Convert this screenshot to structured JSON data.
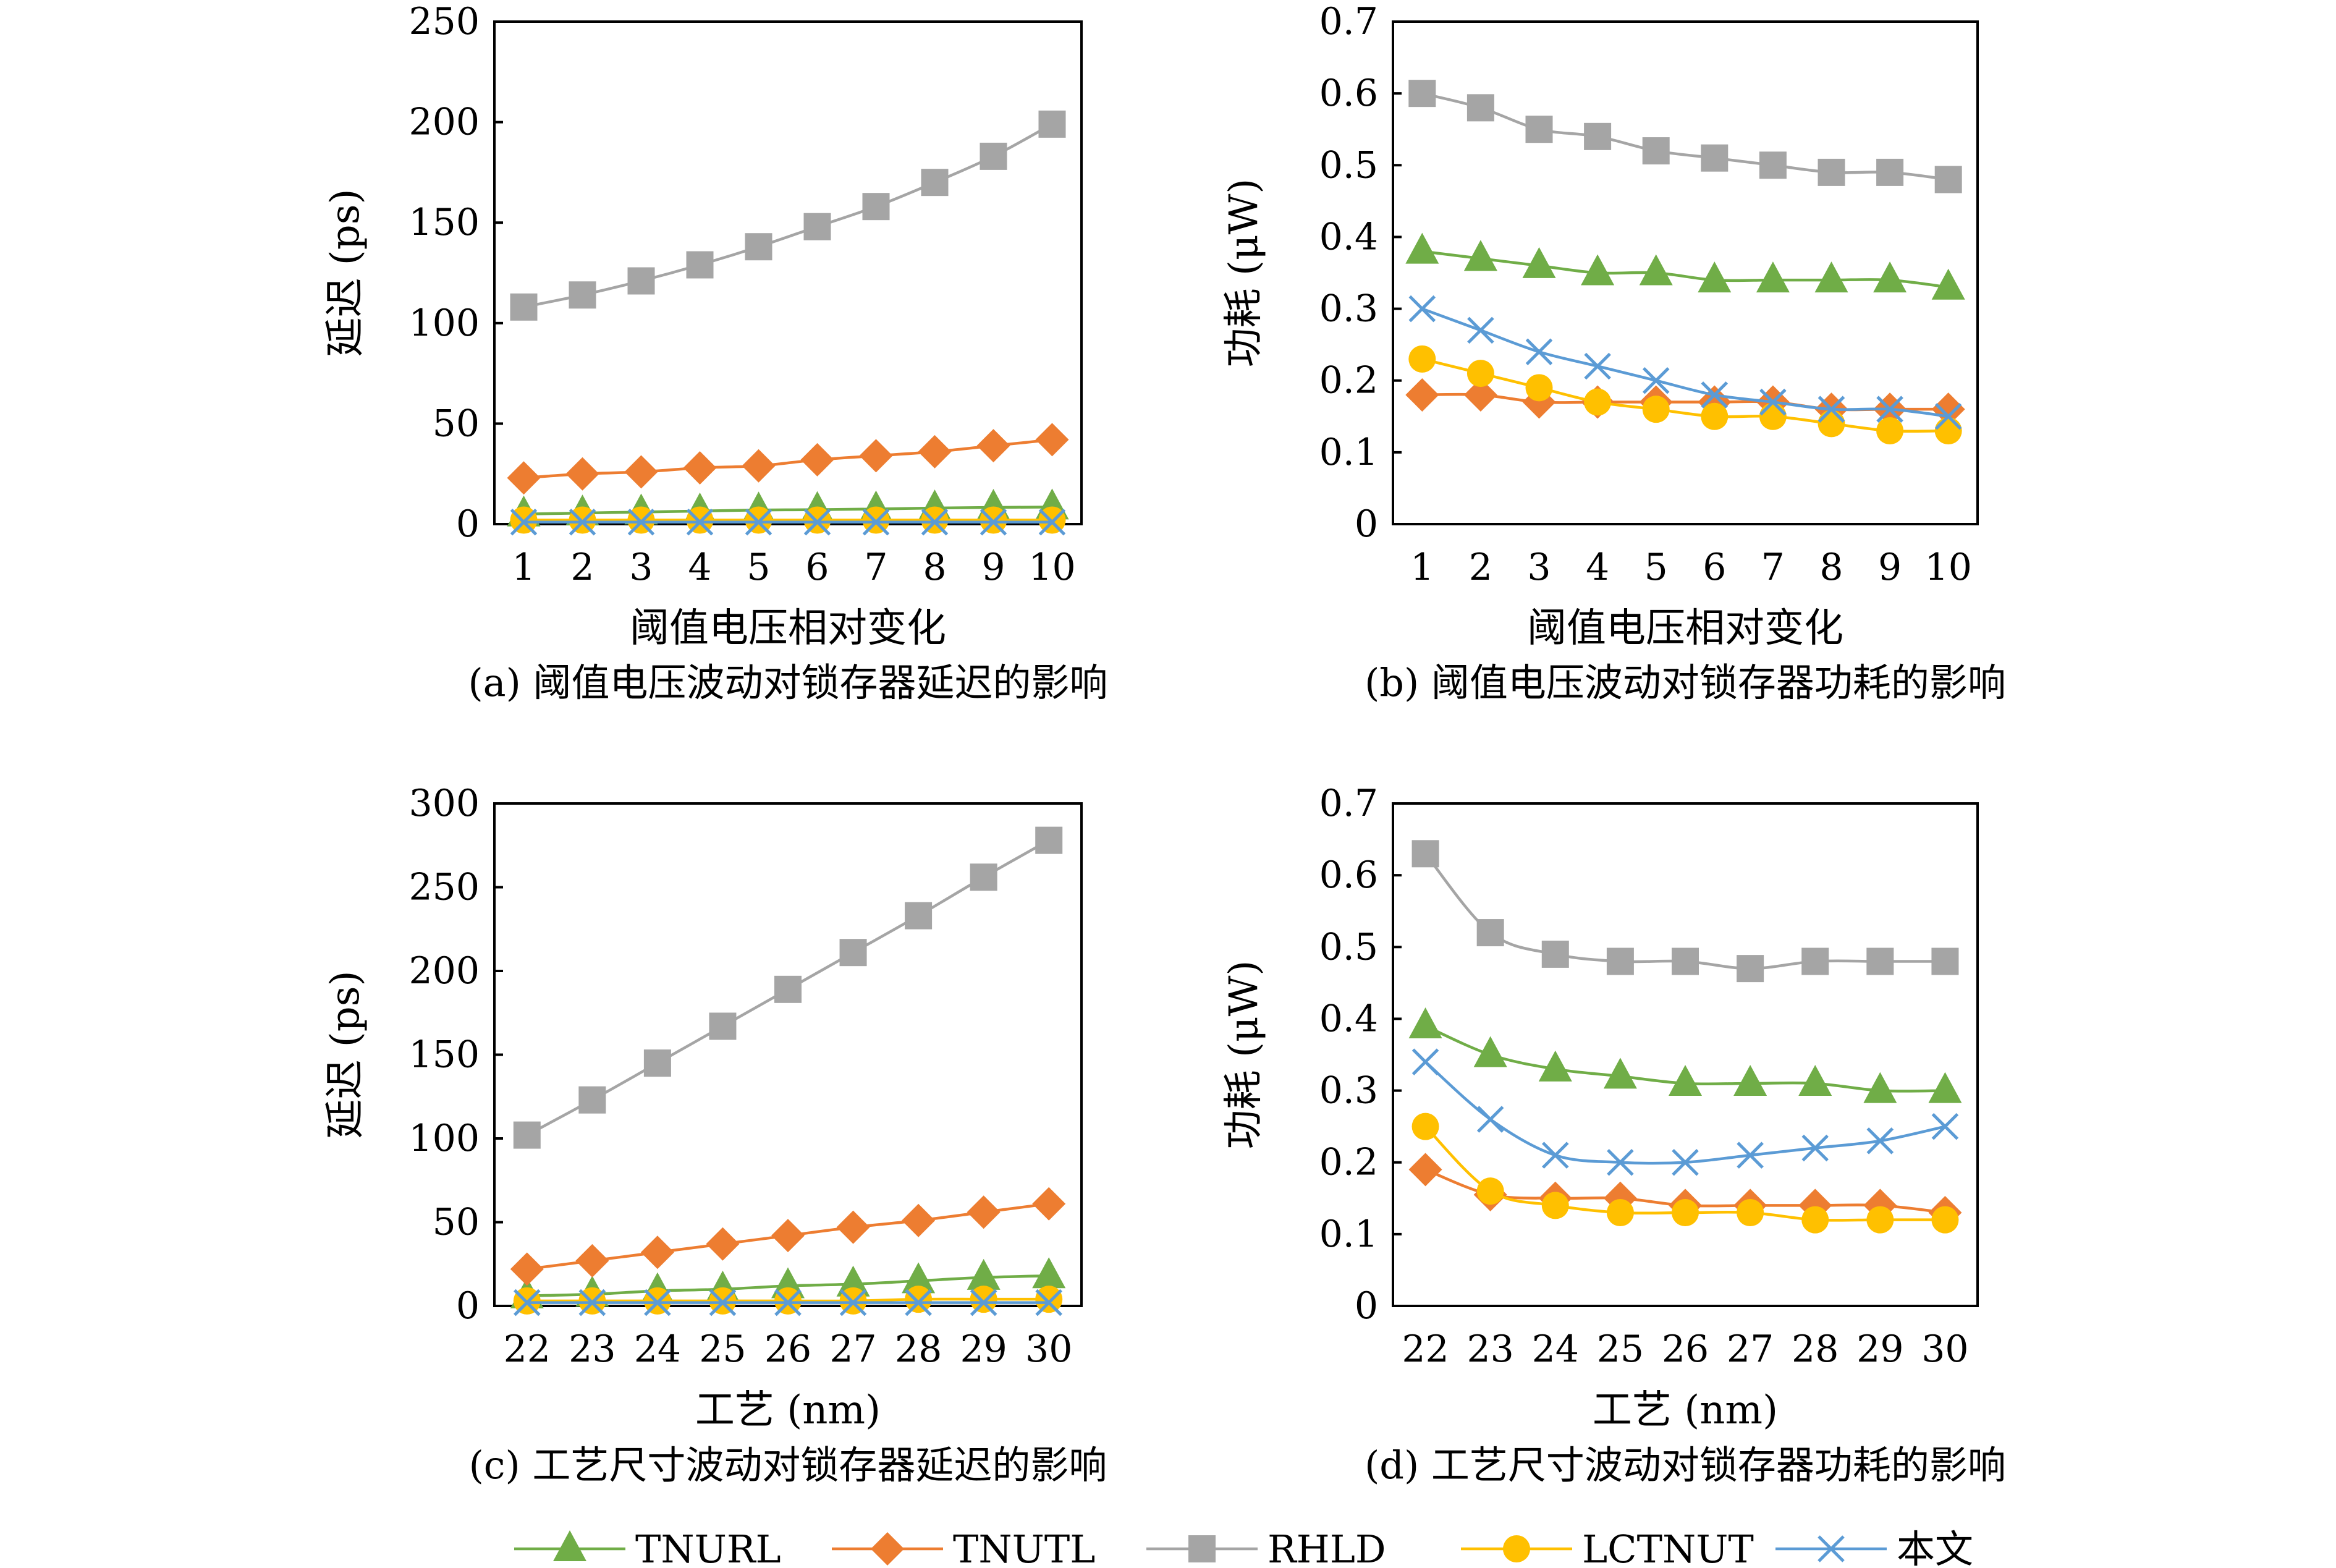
{
  "palette": {
    "TNURL": "#70AD47",
    "TNUTL": "#ED7D31",
    "RHLD": "#A5A5A5",
    "LCTNUT": "#FFC000",
    "BENWEN": "#5B9BD5"
  },
  "legend": {
    "items": [
      {
        "name": "TNURL",
        "marker": "triangle"
      },
      {
        "name": "TNUTL",
        "marker": "diamond"
      },
      {
        "name": "RHLD",
        "marker": "square"
      },
      {
        "name": "LCTNUT",
        "marker": "circle"
      },
      {
        "name": "本文",
        "marker": "x"
      }
    ]
  },
  "chart_data": [
    {
      "type": "line",
      "caption": "(a) 阈值电压波动对锁存器延迟的影响",
      "xlabel": "阈值电压相对变化",
      "ylabel": "延迟 (ps)",
      "categories": [
        "1",
        "2",
        "3",
        "4",
        "5",
        "6",
        "7",
        "8",
        "9",
        "10"
      ],
      "ylim": [
        0,
        250
      ],
      "yticks": [
        0,
        50,
        100,
        150,
        200,
        250
      ],
      "series": [
        {
          "name": "TNURL",
          "values": [
            5,
            5.5,
            6,
            6.5,
            7,
            7.2,
            7.5,
            8,
            8.3,
            8.5
          ]
        },
        {
          "name": "TNUTL",
          "values": [
            23,
            25,
            26,
            28,
            29,
            32,
            34,
            36,
            39,
            42
          ]
        },
        {
          "name": "RHLD",
          "values": [
            108,
            114,
            121,
            129,
            138,
            148,
            158,
            170,
            183,
            199
          ]
        },
        {
          "name": "LCTNUT",
          "values": [
            2,
            2,
            2,
            2,
            2,
            2,
            2,
            2,
            2,
            2
          ]
        },
        {
          "name": "本文",
          "values": [
            1,
            1,
            1,
            1,
            1,
            1,
            1,
            1,
            1,
            1
          ]
        }
      ]
    },
    {
      "type": "line",
      "caption": "(b) 阈值电压波动对锁存器功耗的影响",
      "xlabel": "阈值电压相对变化",
      "ylabel": "功耗 (μW)",
      "categories": [
        "1",
        "2",
        "3",
        "4",
        "5",
        "6",
        "7",
        "8",
        "9",
        "10"
      ],
      "ylim": [
        0,
        0.7
      ],
      "yticks": [
        0,
        0.1,
        0.2,
        0.3,
        0.4,
        0.5,
        0.6,
        0.7
      ],
      "series": [
        {
          "name": "TNURL",
          "values": [
            0.38,
            0.37,
            0.36,
            0.35,
            0.35,
            0.34,
            0.34,
            0.34,
            0.34,
            0.33
          ]
        },
        {
          "name": "TNUTL",
          "values": [
            0.18,
            0.18,
            0.17,
            0.17,
            0.17,
            0.17,
            0.17,
            0.16,
            0.16,
            0.16
          ]
        },
        {
          "name": "RHLD",
          "values": [
            0.6,
            0.58,
            0.55,
            0.54,
            0.52,
            0.51,
            0.5,
            0.49,
            0.49,
            0.48
          ]
        },
        {
          "name": "LCTNUT",
          "values": [
            0.23,
            0.21,
            0.19,
            0.17,
            0.16,
            0.15,
            0.15,
            0.14,
            0.13,
            0.13
          ]
        },
        {
          "name": "本文",
          "values": [
            0.3,
            0.27,
            0.24,
            0.22,
            0.2,
            0.18,
            0.17,
            0.16,
            0.16,
            0.15
          ]
        }
      ]
    },
    {
      "type": "line",
      "caption": "(c) 工艺尺寸波动对锁存器延迟的影响",
      "xlabel": "工艺 (nm)",
      "ylabel": "延迟 (ps)",
      "categories": [
        "22",
        "23",
        "24",
        "25",
        "26",
        "27",
        "28",
        "29",
        "30"
      ],
      "ylim": [
        0,
        300
      ],
      "yticks": [
        0,
        50,
        100,
        150,
        200,
        250,
        300
      ],
      "series": [
        {
          "name": "TNURL",
          "values": [
            6,
            7,
            9,
            10,
            12,
            13,
            15,
            17,
            18
          ]
        },
        {
          "name": "TNUTL",
          "values": [
            22,
            27,
            32,
            37,
            42,
            47,
            51,
            56,
            61
          ]
        },
        {
          "name": "RHLD",
          "values": [
            102,
            123,
            145,
            167,
            189,
            211,
            233,
            256,
            278
          ]
        },
        {
          "name": "LCTNUT",
          "values": [
            3,
            3,
            3,
            3,
            3,
            3,
            4,
            4,
            4
          ]
        },
        {
          "name": "本文",
          "values": [
            2,
            2,
            2,
            2,
            2,
            2,
            2,
            2,
            2
          ]
        }
      ]
    },
    {
      "type": "line",
      "caption": "(d) 工艺尺寸波动对锁存器功耗的影响",
      "xlabel": "工艺 (nm)",
      "ylabel": "功耗 (μW)",
      "categories": [
        "22",
        "23",
        "24",
        "25",
        "26",
        "27",
        "28",
        "29",
        "30"
      ],
      "ylim": [
        0,
        0.7
      ],
      "yticks": [
        0,
        0.1,
        0.2,
        0.3,
        0.4,
        0.5,
        0.6,
        0.7
      ],
      "series": [
        {
          "name": "TNURL",
          "values": [
            0.39,
            0.35,
            0.33,
            0.32,
            0.31,
            0.31,
            0.31,
            0.3,
            0.3
          ]
        },
        {
          "name": "TNUTL",
          "values": [
            0.19,
            0.155,
            0.15,
            0.15,
            0.14,
            0.14,
            0.14,
            0.14,
            0.13
          ]
        },
        {
          "name": "RHLD",
          "values": [
            0.63,
            0.52,
            0.49,
            0.48,
            0.48,
            0.47,
            0.48,
            0.48,
            0.48
          ]
        },
        {
          "name": "LCTNUT",
          "values": [
            0.25,
            0.16,
            0.14,
            0.13,
            0.13,
            0.13,
            0.12,
            0.12,
            0.12
          ]
        },
        {
          "name": "本文",
          "values": [
            0.34,
            0.26,
            0.21,
            0.2,
            0.2,
            0.21,
            0.22,
            0.23,
            0.25
          ]
        }
      ]
    }
  ]
}
